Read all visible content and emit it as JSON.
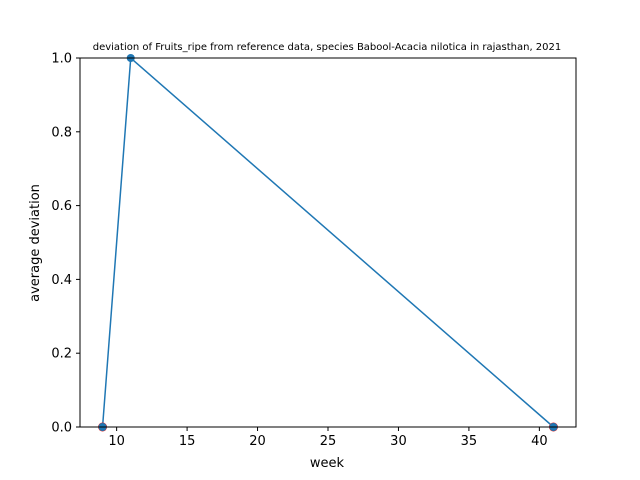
{
  "chart_data": {
    "type": "line",
    "title": "deviation of Fruits_ripe from reference data, species Babool-Acacia nilotica in rajasthan, 2021",
    "xlabel": "week",
    "ylabel": "average deviation",
    "xlim": [
      7.4,
      42.6
    ],
    "ylim": [
      0,
      1
    ],
    "xticks": [
      10,
      15,
      20,
      25,
      30,
      35,
      40
    ],
    "yticks": [
      0.0,
      0.2,
      0.4,
      0.6,
      0.8,
      1.0
    ],
    "xtick_labels": [
      "10",
      "15",
      "20",
      "25",
      "30",
      "35",
      "40"
    ],
    "ytick_labels": [
      "0.0",
      "0.2",
      "0.4",
      "0.6",
      "0.8",
      "1.0"
    ],
    "grid": false,
    "series": [
      {
        "color": "#1f77b4",
        "marker": "circle",
        "x": [
          9,
          11,
          41
        ],
        "y": [
          0,
          1,
          0
        ]
      }
    ],
    "extra_markers": [
      {
        "x": 9,
        "y": 0,
        "color": "#d62728"
      },
      {
        "x": 41,
        "y": 0,
        "color": "#d62728"
      }
    ]
  }
}
